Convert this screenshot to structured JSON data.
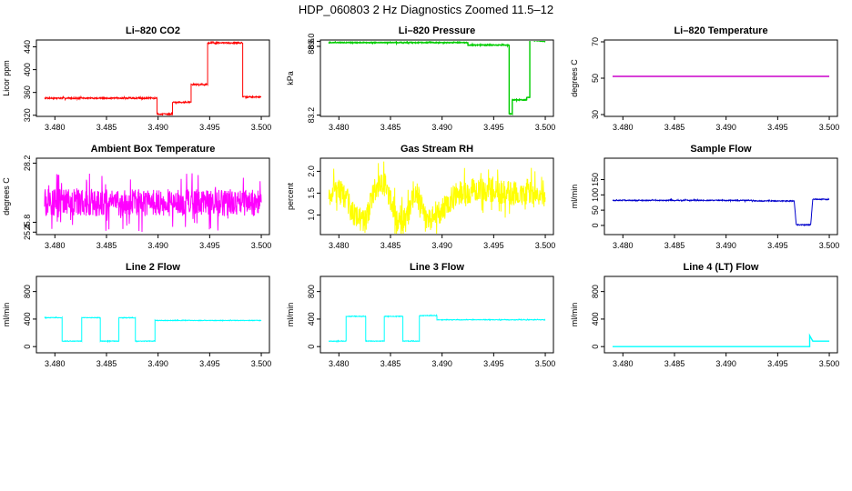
{
  "figure": {
    "title": "HDP_060803  2 Hz Diagnostics Zoomed 11.5–12"
  },
  "chart_data": [
    {
      "type": "line",
      "title": "Li–820 CO2",
      "ylabel": "Licor ppm",
      "xlabel": "",
      "xlim": [
        3.479,
        3.5
      ],
      "xticks": [
        "3.480",
        "3.485",
        "3.490",
        "3.495",
        "3.500"
      ],
      "ylim": [
        318,
        452
      ],
      "yticks": [
        "320",
        "360",
        "400",
        "440"
      ],
      "grid": false,
      "series": [
        {
          "color": "#ff0000",
          "x": [
            3.479,
            3.4899,
            3.4899,
            3.4914,
            3.4914,
            3.4932,
            3.4932,
            3.4948,
            3.4948,
            3.4982,
            3.4982,
            3.5
          ],
          "y": [
            350,
            350,
            322,
            322,
            343,
            343,
            374,
            374,
            447,
            447,
            352,
            352
          ],
          "noise": 1.2
        }
      ]
    },
    {
      "type": "line",
      "title": "Li–820 Pressure",
      "ylabel": "kPa",
      "xlabel": "",
      "xlim": [
        3.479,
        3.5
      ],
      "xticks": [
        "3.480",
        "3.485",
        "3.490",
        "3.495",
        "3.500"
      ],
      "ylim": [
        83.1,
        89.1
      ],
      "yticks": [
        "83.2",
        "88.6",
        "89.0"
      ],
      "grid": false,
      "series": [
        {
          "color": "#00cc00",
          "x": [
            3.479,
            3.4925,
            3.4925,
            3.4965,
            3.4965,
            3.4968,
            3.4968,
            3.4982,
            3.4982,
            3.4985,
            3.4985,
            3.5
          ],
          "y": [
            88.9,
            88.9,
            88.7,
            88.7,
            83.3,
            83.3,
            84.4,
            84.4,
            84.6,
            84.6,
            89.1,
            89.0
          ],
          "noise": 0.03
        }
      ]
    },
    {
      "type": "line",
      "title": "Li–820 Temperature",
      "ylabel": "degrees C",
      "xlabel": "",
      "xlim": [
        3.479,
        3.5
      ],
      "xticks": [
        "3.480",
        "3.485",
        "3.490",
        "3.495",
        "3.500"
      ],
      "ylim": [
        29,
        71
      ],
      "yticks": [
        "30",
        "50",
        "70"
      ],
      "grid": false,
      "series": [
        {
          "color": "#cc00cc",
          "x": [
            3.479,
            3.5
          ],
          "y": [
            51,
            51
          ],
          "noise": 0
        }
      ]
    },
    {
      "type": "line",
      "title": "Ambient Box Temperature",
      "ylabel": "degrees C",
      "xlabel": "",
      "xlim": [
        3.479,
        3.5
      ],
      "xticks": [
        "3.480",
        "3.485",
        "3.490",
        "3.495",
        "3.500"
      ],
      "ylim": [
        25.3,
        28.4
      ],
      "yticks": [
        "25.4",
        "25.8",
        "28.2"
      ],
      "grid": false,
      "series": [
        {
          "color": "#ff00ff",
          "x": [
            3.479,
            3.5
          ],
          "y": [
            26.6,
            26.6
          ],
          "noise": 0.55
        }
      ]
    },
    {
      "type": "line",
      "title": "Gas Stream RH",
      "ylabel": "percent",
      "xlabel": "",
      "xlim": [
        3.479,
        3.5
      ],
      "xticks": [
        "3.480",
        "3.485",
        "3.490",
        "3.495",
        "3.500"
      ],
      "ylim": [
        0.55,
        2.3
      ],
      "yticks": [
        "1.0",
        "1.5",
        "2.0"
      ],
      "grid": false,
      "series": [
        {
          "color": "#ffff00",
          "x": [
            3.479,
            3.4805,
            3.4815,
            3.4825,
            3.4835,
            3.4845,
            3.4855,
            3.4865,
            3.4875,
            3.4885,
            3.4895,
            3.4915,
            3.494,
            3.4965,
            3.499,
            3.5
          ],
          "y": [
            1.5,
            1.5,
            1.0,
            0.8,
            1.6,
            1.7,
            1.0,
            0.85,
            1.6,
            0.8,
            1.0,
            1.5,
            1.6,
            1.5,
            1.5,
            1.4
          ],
          "noise": 0.28
        }
      ]
    },
    {
      "type": "line",
      "title": "Sample Flow",
      "ylabel": "ml/min",
      "xlabel": "",
      "xlim": [
        3.479,
        3.5
      ],
      "xticks": [
        "3.480",
        "3.485",
        "3.490",
        "3.495",
        "3.500"
      ],
      "ylim": [
        -30,
        220
      ],
      "yticks": [
        "0",
        "50",
        "100",
        "150"
      ],
      "grid": false,
      "series": [
        {
          "color": "#0000cc",
          "x": [
            3.479,
            3.4925,
            3.4925,
            3.4966,
            3.4968,
            3.4982,
            3.4984,
            3.5
          ],
          "y": [
            82,
            82,
            80,
            80,
            2,
            2,
            86,
            85
          ],
          "noise": 1.5
        }
      ]
    },
    {
      "type": "line",
      "title": "Line 2 Flow",
      "ylabel": "ml/min",
      "xlabel": "",
      "xlim": [
        3.479,
        3.5
      ],
      "xticks": [
        "3.480",
        "3.485",
        "3.490",
        "3.495",
        "3.500"
      ],
      "ylim": [
        -90,
        1020
      ],
      "yticks": [
        "0",
        "400",
        "800"
      ],
      "grid": false,
      "series": [
        {
          "color": "#00ffff",
          "x": [
            3.479,
            3.4807,
            3.4807,
            3.4826,
            3.4826,
            3.4844,
            3.4844,
            3.4862,
            3.4862,
            3.4878,
            3.4878,
            3.4897,
            3.4897,
            3.5
          ],
          "y": [
            420,
            420,
            80,
            80,
            420,
            420,
            80,
            80,
            420,
            420,
            80,
            80,
            380,
            380
          ],
          "noise": 4
        }
      ]
    },
    {
      "type": "line",
      "title": "Line 3 Flow",
      "ylabel": "ml/min",
      "xlabel": "",
      "xlim": [
        3.479,
        3.5
      ],
      "xticks": [
        "3.480",
        "3.485",
        "3.490",
        "3.495",
        "3.500"
      ],
      "ylim": [
        -90,
        1020
      ],
      "yticks": [
        "0",
        "400",
        "800"
      ],
      "grid": false,
      "series": [
        {
          "color": "#00ffff",
          "x": [
            3.479,
            3.4807,
            3.4807,
            3.4826,
            3.4826,
            3.4844,
            3.4844,
            3.4862,
            3.4862,
            3.4878,
            3.4878,
            3.4895,
            3.4895,
            3.5
          ],
          "y": [
            80,
            80,
            440,
            440,
            80,
            80,
            440,
            440,
            80,
            80,
            450,
            450,
            390,
            390
          ],
          "noise": 4
        }
      ]
    },
    {
      "type": "line",
      "title": "Line 4 (LT) Flow",
      "ylabel": "ml/min",
      "xlabel": "",
      "xlim": [
        3.479,
        3.5
      ],
      "xticks": [
        "3.480",
        "3.485",
        "3.490",
        "3.495",
        "3.500"
      ],
      "ylim": [
        -90,
        1020
      ],
      "yticks": [
        "0",
        "400",
        "800"
      ],
      "grid": false,
      "series": [
        {
          "color": "#00ffff",
          "x": [
            3.479,
            3.4981,
            3.4981,
            3.4984,
            3.4984,
            3.5
          ],
          "y": [
            0,
            0,
            160,
            80,
            80,
            80
          ],
          "noise": 0
        }
      ]
    }
  ]
}
